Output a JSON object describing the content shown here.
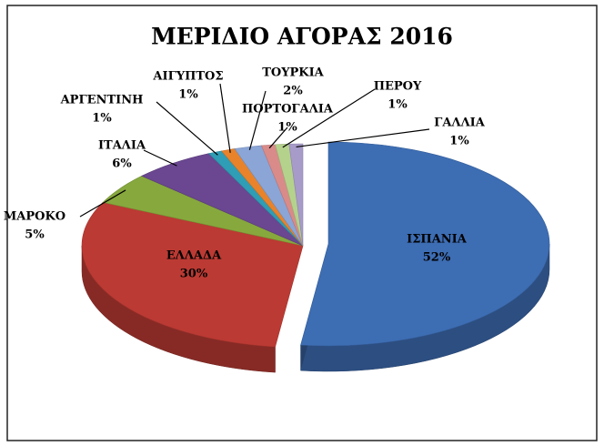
{
  "chart_data": {
    "type": "pie",
    "title": "ΜΕΡΙΔΙΟ ΑΓΟΡΑΣ 2016",
    "categories": [
      "ΙΣΠΑΝΙΑ",
      "ΕΛΛΑΔΑ",
      "ΜΑΡΟΚΟ",
      "ΙΤΑΛΙΑ",
      "ΑΡΓΕΝΤΙΝΗ",
      "ΑΙΓΥΠΤΟΣ",
      "ΤΟΥΡΚΙΑ",
      "ΠΟΡΤΟΓΑΛΙΑ",
      "ΠΕΡΟΥ",
      "ΓΑΛΛΙΑ"
    ],
    "values": [
      52,
      30,
      5,
      6,
      1,
      1,
      2,
      1,
      1,
      1
    ],
    "value_labels": [
      "52%",
      "30%",
      "5%",
      "6%",
      "1%",
      "1%",
      "2%",
      "1%",
      "1%",
      "1%"
    ],
    "colors": [
      "#3d6db3",
      "#bb3a33",
      "#87a83d",
      "#6a4790",
      "#2f9db5",
      "#e8832b",
      "#8aa5d6",
      "#d98b8a",
      "#b5d28d",
      "#a79bc9"
    ]
  }
}
